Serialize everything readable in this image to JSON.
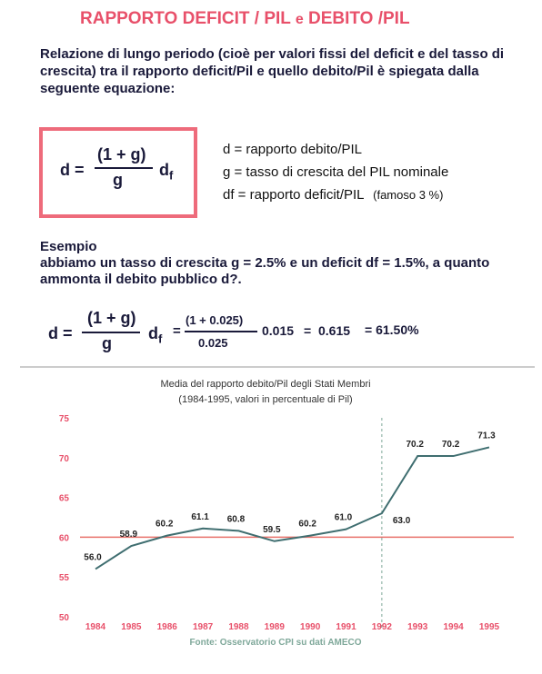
{
  "header": {
    "title": "RAPPORTO DEFICIT / PIL",
    "title_join": "e",
    "title_end": "DEBITO /PIL"
  },
  "intro": "Relazione di lungo periodo (cioè per valori fissi del deficit e del tasso di crescita) tra il rapporto deficit/Pil e quello debito/Pil è spiegata dalla seguente equazione:",
  "formula": {
    "lhs": "d =",
    "numerator": "(1 + g)",
    "denominator": "g",
    "factor": "d",
    "factor_sub": "f"
  },
  "definitions": [
    "d = rapporto debito/PIL",
    "g = tasso di crescita del  PIL nominale",
    "df = rapporto deficit/PIL"
  ],
  "definition_note": "(famoso 3 %)",
  "example": {
    "heading": "Esempio",
    "text": "abbiamo un tasso di crescita g = 2.5% e un deficit df = 1.5%, a quanto ammonta il debito pubblico d?.",
    "lhs": "d =",
    "numerator": "(1 + g)",
    "denominator": "g",
    "factor": "d",
    "factor_sub": "f",
    "eq": "=",
    "num2": "(1 + 0.025)",
    "den2": "0.025",
    "mult": "0.015",
    "eq2": "=",
    "result": "0.615",
    "result_pct": "= 61.50%"
  },
  "chart_data": {
    "type": "line",
    "title": "Media del rapporto debito/Pil degli Stati Membri",
    "subtitle": "(1984-1995, valori in percentuale di Pil)",
    "categories": [
      "1984",
      "1985",
      "1986",
      "1987",
      "1988",
      "1989",
      "1990",
      "1991",
      "1992",
      "1993",
      "1994",
      "1995"
    ],
    "values": [
      56.0,
      58.9,
      60.2,
      61.1,
      60.8,
      59.5,
      60.2,
      61.0,
      63.0,
      70.2,
      70.2,
      71.3
    ],
    "value_labels": [
      "56.0",
      "58.9",
      "60.2",
      "61.1",
      "60.8",
      "59.5",
      "60.2",
      "61.0",
      "63.0",
      "70.2",
      "70.2",
      "71.3"
    ],
    "color": "#3f6e70",
    "ylim": [
      50,
      75
    ],
    "yticks": [
      50,
      55,
      60,
      65,
      70,
      75
    ],
    "reference_line": {
      "value": 60,
      "color": "#e8706a"
    },
    "vline_category": "1992",
    "source": "Fonte: Osservatorio CPI su dati AMECO"
  }
}
